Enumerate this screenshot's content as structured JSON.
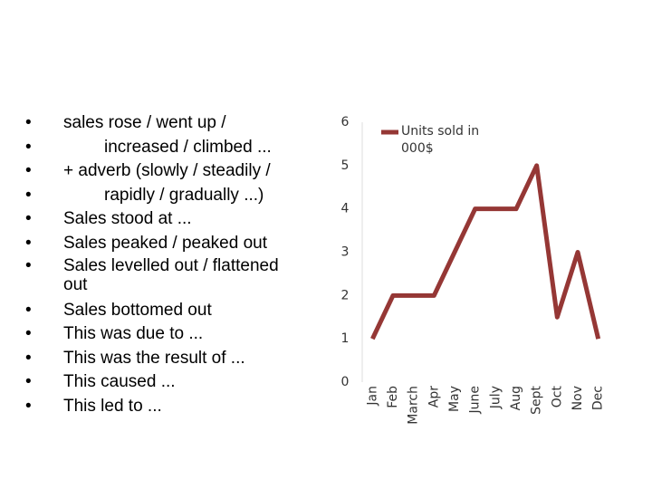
{
  "bullets": [
    "sales rose / went up /",
    "increased / climbed ...",
    "+ adverb (slowly / steadily /",
    "rapidly / gradually ...)",
    "Sales stood at ...",
    "Sales peaked / peaked out",
    "Sales levelled out / flattened out",
    "Sales bottomed out",
    "This was due to ...",
    "This was the result of ...",
    "This caused ...",
    "This led to ..."
  ],
  "chart_data": {
    "type": "line",
    "categories": [
      "Jan",
      "Feb",
      "March",
      "Apr",
      "May",
      "June",
      "July",
      "Aug",
      "Sept",
      "Oct",
      "Nov",
      "Dec"
    ],
    "series": [
      {
        "name": "Units sold in 000$",
        "color": "#953735",
        "values": [
          1,
          2,
          2,
          2,
          3,
          4,
          4,
          4,
          5,
          1.5,
          3,
          1
        ]
      }
    ],
    "ylim": [
      0,
      6
    ],
    "yticks": [
      0,
      1,
      2,
      3,
      4,
      5,
      6
    ],
    "grid": false,
    "legend": "top-right"
  }
}
